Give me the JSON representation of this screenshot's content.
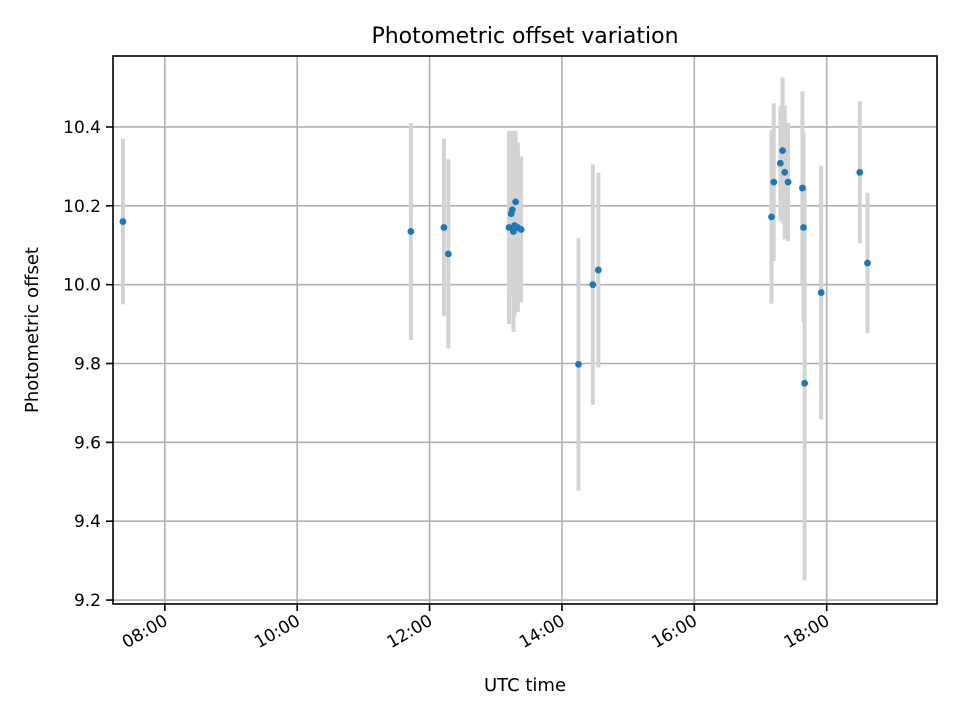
{
  "chart_data": {
    "type": "scatter",
    "title": "Photometric offset variation",
    "xlabel": "UTC time",
    "ylabel": "Photometric offset",
    "x_unit": "hours (UTC)",
    "xlim": [
      "07:13",
      "19:40"
    ],
    "ylim": [
      9.19,
      10.58
    ],
    "x_ticks": [
      "08:00",
      "10:00",
      "12:00",
      "14:00",
      "16:00",
      "18:00"
    ],
    "y_ticks": [
      "9.2",
      "9.4",
      "9.6",
      "9.8",
      "10.0",
      "10.2",
      "10.4"
    ],
    "grid": true,
    "marker_color": "#1f77b4",
    "errorbar_color": "#d3d3d3",
    "points": [
      {
        "x": "07:22",
        "y": 10.16,
        "err": 0.21
      },
      {
        "x": "11:43",
        "y": 10.135,
        "err": 0.275
      },
      {
        "x": "12:13",
        "y": 10.145,
        "err": 0.225
      },
      {
        "x": "12:17",
        "y": 10.078,
        "err": 0.24
      },
      {
        "x": "13:12",
        "y": 10.145,
        "err": 0.245
      },
      {
        "x": "13:14",
        "y": 10.18,
        "err": 0.21
      },
      {
        "x": "13:15",
        "y": 10.19,
        "err": 0.2
      },
      {
        "x": "13:16",
        "y": 10.135,
        "err": 0.255
      },
      {
        "x": "13:17",
        "y": 10.15,
        "err": 0.23
      },
      {
        "x": "13:18",
        "y": 10.21,
        "err": 0.18
      },
      {
        "x": "13:20",
        "y": 10.145,
        "err": 0.215
      },
      {
        "x": "13:23",
        "y": 10.14,
        "err": 0.185
      },
      {
        "x": "14:15",
        "y": 9.798,
        "err": 0.32
      },
      {
        "x": "14:28",
        "y": 10.0,
        "err": 0.305
      },
      {
        "x": "14:33",
        "y": 10.037,
        "err": 0.247
      },
      {
        "x": "17:10",
        "y": 10.172,
        "err": 0.22
      },
      {
        "x": "17:12",
        "y": 10.26,
        "err": 0.2
      },
      {
        "x": "17:18",
        "y": 10.308,
        "err": 0.145
      },
      {
        "x": "17:20",
        "y": 10.34,
        "err": 0.185
      },
      {
        "x": "17:22",
        "y": 10.285,
        "err": 0.17
      },
      {
        "x": "17:25",
        "y": 10.26,
        "err": 0.15
      },
      {
        "x": "17:38",
        "y": 10.245,
        "err": 0.245
      },
      {
        "x": "17:39",
        "y": 10.145,
        "err": 0.24
      },
      {
        "x": "17:40",
        "y": 9.75,
        "err": 0.5
      },
      {
        "x": "17:55",
        "y": 9.98,
        "err": 0.322
      },
      {
        "x": "18:30",
        "y": 10.285,
        "err": 0.18
      },
      {
        "x": "18:37",
        "y": 10.055,
        "err": 0.178
      }
    ]
  }
}
